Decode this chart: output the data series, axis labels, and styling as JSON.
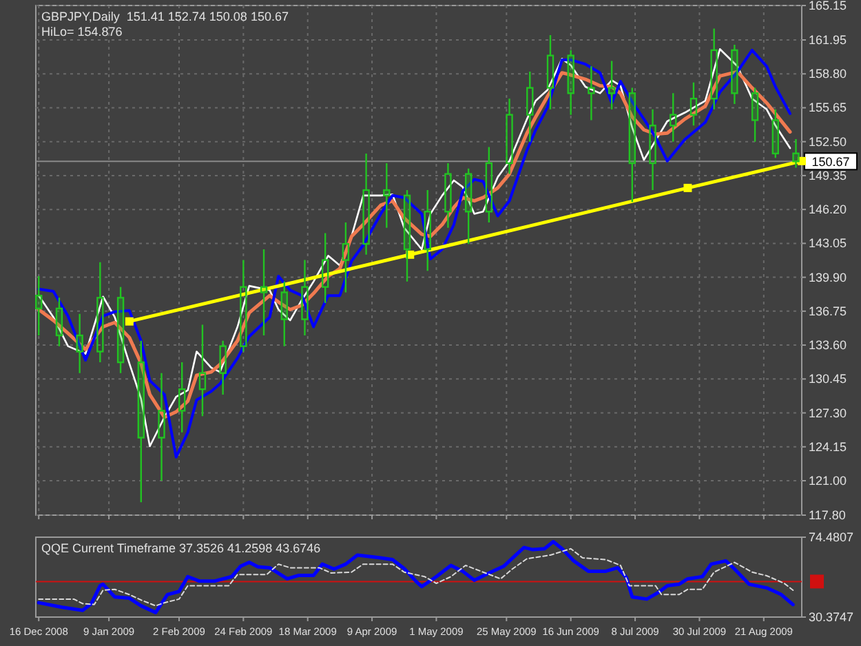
{
  "chart_data": [
    {
      "type": "candlestick",
      "title": "GBPJPY,Daily  151.41 152.74 150.08 150.67",
      "subtitle": "HiLo= 154.876",
      "xlim": [
        "2008-12-15",
        "2009-09-03"
      ],
      "xticks": [
        {
          "value": "2008-12-16",
          "label": null
        },
        {
          "value": "2009-01-09",
          "label": null
        },
        {
          "value": "2009-02-02",
          "label": null
        },
        {
          "value": "2009-02-24",
          "label": null
        },
        {
          "value": "2009-03-18",
          "label": null
        },
        {
          "value": "2009-04-09",
          "label": null
        },
        {
          "value": "2009-05-01",
          "label": null
        },
        {
          "value": "2009-05-25",
          "label": null
        },
        {
          "value": "2009-06-16",
          "label": null
        },
        {
          "value": "2009-07-08",
          "label": null
        },
        {
          "value": "2009-07-30",
          "label": null
        },
        {
          "value": "2009-08-21",
          "label": null
        }
      ],
      "ylim": [
        117.8,
        165.15
      ],
      "yticks": [
        {
          "value": 117.8,
          "label": "117.80"
        },
        {
          "value": 121,
          "label": "121.00"
        },
        124.15,
        {
          "value": 127.3,
          "label": "127.30"
        },
        {
          "value": 130.45,
          "label": "130.45"
        },
        {
          "value": 133.6,
          "label": "133.60"
        },
        136.75,
        {
          "value": 139.9,
          "label": "139.90"
        },
        143.05,
        {
          "value": 146.2,
          "label": "146.20"
        },
        149.35,
        {
          "value": 152.5,
          "label": "152.50"
        },
        155.65,
        {
          "value": 158.8,
          "label": "158.80"
        },
        161.95,
        165.15
      ],
      "tick_labels": "y",
      "grid": true,
      "ref_lines": [
        {
          "axis": "y",
          "value": 150.67,
          "label": "150.67",
          "color": "#8a8a8a"
        }
      ],
      "series": [
        {
          "color": "#22c322",
          "x": [
            "2008-12-16",
            "2008-12-23",
            "2008-12-30",
            "2009-01-06",
            "2009-01-13",
            "2009-01-20",
            "2009-01-27",
            "2009-02-03",
            "2009-02-10",
            "2009-02-17",
            "2009-02-24",
            "2009-03-03",
            "2009-03-10",
            "2009-03-17",
            "2009-03-24",
            "2009-03-31",
            "2009-04-07",
            "2009-04-14",
            "2009-04-21",
            "2009-04-28",
            "2009-05-05",
            "2009-05-12",
            "2009-05-19",
            "2009-05-26",
            "2009-06-02",
            "2009-06-09",
            "2009-06-16",
            "2009-06-23",
            "2009-06-30",
            "2009-07-07",
            "2009-07-14",
            "2009-07-21",
            "2009-07-28",
            "2009-08-04",
            "2009-08-11",
            "2009-08-18",
            "2009-08-25",
            "2009-09-01"
          ],
          "ohlc": [
            [
              138.2,
              140.0,
              134.5,
              137.0
            ],
            [
              137.0,
              138.0,
              133.5,
              134.5
            ],
            [
              134.5,
              136.5,
              131.0,
              133.0
            ],
            [
              133.0,
              141.3,
              132.0,
              138.0
            ],
            [
              138.0,
              139.0,
              131.0,
              132.0
            ],
            [
              132.0,
              134.0,
              119.0,
              125.0
            ],
            [
              125.0,
              131.0,
              121.0,
              127.5
            ],
            [
              127.5,
              132.0,
              125.5,
              129.5
            ],
            [
              129.5,
              135.5,
              127.0,
              131.0
            ],
            [
              131.0,
              134.0,
              129.0,
              133.5
            ],
            [
              133.5,
              141.5,
              133.0,
              139.0
            ],
            [
              139.0,
              142.5,
              134.5,
              138.5
            ],
            [
              138.5,
              139.5,
              133.5,
              136.0
            ],
            [
              136.0,
              141.5,
              134.5,
              139.0
            ],
            [
              139.0,
              144.0,
              137.5,
              141.5
            ],
            [
              141.5,
              145.0,
              138.5,
              143.0
            ],
            [
              143.0,
              151.4,
              142.0,
              148.0
            ],
            [
              148.0,
              150.5,
              144.5,
              147.5
            ],
            [
              147.5,
              148.0,
              139.5,
              142.5
            ],
            [
              142.5,
              148.0,
              140.5,
              146.0
            ],
            [
              146.0,
              150.5,
              144.5,
              149.5
            ],
            [
              149.5,
              150.0,
              143.0,
              146.0
            ],
            [
              146.0,
              152.0,
              145.0,
              150.5
            ],
            [
              150.5,
              156.5,
              149.5,
              155.0
            ],
            [
              155.0,
              159.0,
              152.5,
              157.5
            ],
            [
              157.5,
              162.4,
              155.5,
              160.5
            ],
            [
              160.5,
              161.0,
              155.0,
              157.0
            ],
            [
              157.0,
              159.5,
              154.5,
              157.5
            ],
            [
              157.5,
              160.0,
              155.5,
              157.0
            ],
            [
              157.0,
              157.5,
              146.9,
              150.5
            ],
            [
              150.5,
              155.5,
              148.0,
              154.0
            ],
            [
              154.0,
              157.0,
              152.5,
              155.0
            ],
            [
              155.0,
              158.0,
              154.0,
              156.5
            ],
            [
              156.5,
              163.0,
              155.5,
              161.0
            ],
            [
              161.0,
              161.5,
              156.0,
              157.0
            ],
            [
              157.0,
              157.5,
              152.5,
              154.5
            ],
            [
              154.5,
              155.5,
              151.0,
              151.4
            ],
            [
              151.41,
              152.74,
              150.08,
              150.67
            ]
          ]
        },
        {
          "type": "line",
          "color": "#ffffff",
          "x": [
            "2008-12-16",
            "2008-12-21",
            "2008-12-26",
            "2009-01-01",
            "2009-01-07",
            "2009-01-11",
            "2009-01-16",
            "2009-01-20",
            "2009-01-23",
            "2009-01-28",
            "2009-02-01",
            "2009-02-05",
            "2009-02-08",
            "2009-02-13",
            "2009-02-16",
            "2009-02-22",
            "2009-02-26",
            "2009-03-05",
            "2009-03-08",
            "2009-03-12",
            "2009-03-16",
            "2009-03-20",
            "2009-03-25",
            "2009-03-29",
            "2009-04-02",
            "2009-04-06",
            "2009-04-12",
            "2009-04-16",
            "2009-04-20",
            "2009-04-26",
            "2009-04-29",
            "2009-05-03",
            "2009-05-07",
            "2009-05-10",
            "2009-05-14",
            "2009-05-17",
            "2009-05-22",
            "2009-05-26",
            "2009-06-01",
            "2009-06-04",
            "2009-06-08",
            "2009-06-13",
            "2009-06-16",
            "2009-06-21",
            "2009-06-26",
            "2009-06-30",
            "2009-07-03",
            "2009-07-07",
            "2009-07-11",
            "2009-07-15",
            "2009-07-19",
            "2009-07-25",
            "2009-08-01",
            "2009-08-06",
            "2009-08-12",
            "2009-08-17",
            "2009-08-22",
            "2009-08-25",
            "2009-08-30"
          ],
          "values": [
            138.2,
            136.2,
            133.5,
            132.8,
            138.1,
            136.2,
            131.9,
            128.6,
            124.2,
            126.9,
            128.8,
            129.4,
            133.0,
            131.5,
            131.1,
            135.3,
            139.1,
            138.7,
            136.9,
            135.9,
            137.8,
            139.5,
            141.9,
            141.0,
            143.7,
            147.5,
            147.5,
            147.6,
            144.5,
            142.5,
            145.8,
            147.5,
            148.9,
            148.3,
            145.8,
            146.0,
            149.2,
            150.7,
            154.6,
            156.3,
            157.3,
            160.2,
            159.6,
            157.6,
            157.0,
            158.2,
            157.7,
            153.8,
            150.8,
            152.6,
            154.4,
            155.2,
            156.3,
            161.1,
            159.5,
            156.5,
            155.5,
            154.0,
            151.9
          ]
        },
        {
          "type": "line",
          "color": "#f07a50",
          "x": [
            "2008-12-16",
            "2008-12-21",
            "2008-12-26",
            "2009-01-01",
            "2009-01-07",
            "2009-01-11",
            "2009-01-16",
            "2009-01-20",
            "2009-01-23",
            "2009-01-28",
            "2009-02-01",
            "2009-02-05",
            "2009-02-08",
            "2009-02-13",
            "2009-02-16",
            "2009-02-22",
            "2009-02-26",
            "2009-03-05",
            "2009-03-08",
            "2009-03-12",
            "2009-03-16",
            "2009-03-20",
            "2009-03-25",
            "2009-03-29",
            "2009-04-02",
            "2009-04-06",
            "2009-04-12",
            "2009-04-16",
            "2009-04-20",
            "2009-04-26",
            "2009-04-29",
            "2009-05-03",
            "2009-05-07",
            "2009-05-10",
            "2009-05-14",
            "2009-05-17",
            "2009-05-22",
            "2009-05-26",
            "2009-06-01",
            "2009-06-04",
            "2009-06-08",
            "2009-06-13",
            "2009-06-16",
            "2009-06-21",
            "2009-06-26",
            "2009-06-30",
            "2009-07-03",
            "2009-07-07",
            "2009-07-11",
            "2009-07-15",
            "2009-07-19",
            "2009-07-25",
            "2009-08-01",
            "2009-08-06",
            "2009-08-12",
            "2009-08-17",
            "2009-08-22",
            "2009-08-25",
            "2009-08-30"
          ],
          "values": [
            136.9,
            135.9,
            134.7,
            133.2,
            135.3,
            135.7,
            134.3,
            131.9,
            129.0,
            126.9,
            127.4,
            128.4,
            130.8,
            131.1,
            131.8,
            134.0,
            136.6,
            138.2,
            137.6,
            136.9,
            137.3,
            138.4,
            140.0,
            140.7,
            143.7,
            144.8,
            146.6,
            147.0,
            145.4,
            143.9,
            143.7,
            144.8,
            146.4,
            147.3,
            147.0,
            147.3,
            148.2,
            149.5,
            153.3,
            154.8,
            156.7,
            158.9,
            158.7,
            158.3,
            157.7,
            157.6,
            157.0,
            154.8,
            153.6,
            153.2,
            153.3,
            154.6,
            155.8,
            158.6,
            159.0,
            157.5,
            156.1,
            155.1,
            153.4
          ]
        },
        {
          "type": "line",
          "color": "#0000ff",
          "x": [
            "2008-12-16",
            "2008-12-21",
            "2008-12-26",
            "2009-01-01",
            "2009-01-07",
            "2009-01-11",
            "2009-01-16",
            "2009-01-20",
            "2009-01-23",
            "2009-01-28",
            "2009-02-01",
            "2009-02-05",
            "2009-02-08",
            "2009-02-13",
            "2009-02-16",
            "2009-02-22",
            "2009-02-26",
            "2009-03-05",
            "2009-03-08",
            "2009-03-12",
            "2009-03-16",
            "2009-03-20",
            "2009-03-25",
            "2009-03-29",
            "2009-04-02",
            "2009-04-06",
            "2009-04-12",
            "2009-04-16",
            "2009-04-20",
            "2009-04-26",
            "2009-04-29",
            "2009-05-03",
            "2009-05-07",
            "2009-05-10",
            "2009-05-14",
            "2009-05-17",
            "2009-05-22",
            "2009-05-26",
            "2009-06-01",
            "2009-06-04",
            "2009-06-08",
            "2009-06-13",
            "2009-06-16",
            "2009-06-21",
            "2009-06-26",
            "2009-06-30",
            "2009-07-03",
            "2009-07-07",
            "2009-07-11",
            "2009-07-15",
            "2009-07-19",
            "2009-07-25",
            "2009-08-01",
            "2009-08-06",
            "2009-08-12",
            "2009-08-17",
            "2009-08-22",
            "2009-08-25",
            "2009-08-30"
          ],
          "values": [
            138.8,
            138.6,
            136.3,
            132.2,
            136.3,
            136.7,
            136.8,
            134.0,
            130.3,
            129.0,
            123.2,
            125.5,
            128.5,
            129.3,
            130.0,
            132.4,
            134.4,
            136.2,
            140.0,
            138.7,
            138.2,
            135.3,
            138.2,
            138.2,
            141.4,
            142.9,
            145.8,
            147.5,
            147.3,
            145.8,
            141.6,
            142.5,
            144.8,
            147.9,
            149.0,
            148.8,
            145.6,
            147.0,
            151.7,
            153.6,
            155.7,
            160.1,
            160.1,
            159.7,
            158.9,
            156.1,
            158.1,
            156.2,
            154.6,
            152.9,
            150.7,
            152.7,
            154.3,
            157.1,
            159.0,
            161.0,
            159.5,
            157.6,
            155.1
          ]
        },
        {
          "type": "line",
          "color": "#ffff00",
          "marker": "square",
          "x": [
            "2009-01-16",
            "2009-04-22",
            "2009-07-26",
            "2009-09-03"
          ],
          "values": [
            135.8,
            142.0,
            148.2,
            150.7
          ]
        }
      ]
    },
    {
      "type": "line",
      "title": "QQE Current Timeframe 37.3526 41.2598 43.6746",
      "xlim": [
        "2008-12-15",
        "2009-09-03"
      ],
      "xticks": [
        {
          "value": "2008-12-16",
          "label": "16 Dec 2008"
        },
        {
          "value": "2009-01-09",
          "label": "9 Jan 2009"
        },
        {
          "value": "2009-02-02",
          "label": "2 Feb 2009"
        },
        {
          "value": "2009-02-24",
          "label": "24 Feb 2009"
        },
        {
          "value": "2009-03-18",
          "label": "18 Mar 2009"
        },
        {
          "value": "2009-04-09",
          "label": "9 Apr 2009"
        },
        {
          "value": "2009-05-01",
          "label": "1 May 2009"
        },
        {
          "value": "2009-05-25",
          "label": "25 May 2009"
        },
        {
          "value": "2009-06-16",
          "label": "16 Jun 2009"
        },
        {
          "value": "2009-07-08",
          "label": "8 Jul 2009"
        },
        {
          "value": "2009-07-30",
          "label": "30 Jul 2009"
        },
        {
          "value": "2009-08-21",
          "label": "21 Aug 2009"
        }
      ],
      "ylim": [
        30.3747,
        74.4807
      ],
      "yticks": [
        30.3747,
        74.4807
      ],
      "grid": false,
      "ref_lines": [
        {
          "axis": "y",
          "value": 50,
          "label": null,
          "color": "#d01010"
        }
      ],
      "series": [
        {
          "color": "#0000ff",
          "x": [
            "2008-12-16",
            "2008-12-24",
            "2008-12-31",
            "2009-01-03",
            "2009-01-06",
            "2009-01-07",
            "2009-01-11",
            "2009-01-16",
            "2009-01-20",
            "2009-01-25",
            "2009-01-29",
            "2009-02-02",
            "2009-02-05",
            "2009-02-09",
            "2009-02-14",
            "2009-02-20",
            "2009-02-23",
            "2009-02-26",
            "2009-03-01",
            "2009-03-05",
            "2009-03-11",
            "2009-03-15",
            "2009-03-20",
            "2009-03-23",
            "2009-03-27",
            "2009-03-31",
            "2009-04-04",
            "2009-04-11",
            "2009-04-16",
            "2009-04-20",
            "2009-04-24",
            "2009-04-26",
            "2009-05-01",
            "2009-05-06",
            "2009-05-10",
            "2009-05-14",
            "2009-05-19",
            "2009-05-24",
            "2009-05-31",
            "2009-06-03",
            "2009-06-07",
            "2009-06-10",
            "2009-06-13",
            "2009-06-17",
            "2009-06-22",
            "2009-06-28",
            "2009-07-02",
            "2009-07-05",
            "2009-07-07",
            "2009-07-12",
            "2009-07-16",
            "2009-07-19",
            "2009-07-23",
            "2009-07-26",
            "2009-07-31",
            "2009-08-03",
            "2009-08-08",
            "2009-08-11",
            "2009-08-16",
            "2009-08-22",
            "2009-08-27",
            "2009-08-31"
          ],
          "values": [
            38.3,
            35.8,
            34.1,
            37.8,
            47.7,
            48.5,
            41.5,
            40.8,
            36.6,
            32.9,
            42.8,
            44.5,
            52.7,
            50.2,
            50.2,
            52.7,
            58.4,
            60.6,
            58.1,
            57.6,
            51.5,
            53.4,
            53.4,
            59.6,
            56.9,
            59.6,
            64.6,
            63.3,
            62.1,
            57.2,
            50.2,
            47.2,
            52.7,
            58.9,
            55.7,
            50.7,
            54.7,
            58.4,
            68.8,
            67.6,
            68.1,
            72.0,
            68.1,
            61.4,
            55.7,
            55.7,
            57.6,
            52.2,
            41.5,
            40.3,
            44.0,
            47.7,
            48.5,
            51.5,
            52.7,
            59.6,
            61.4,
            56.9,
            48.5,
            46.5,
            42.8,
            37.3
          ]
        },
        {
          "color": "#d8d8d8",
          "line_style": "dashed",
          "x": [
            "2008-12-16",
            "2008-12-28",
            "2008-12-31",
            "2009-01-04",
            "2009-01-07",
            "2009-01-11",
            "2009-01-16",
            "2009-01-20",
            "2009-01-25",
            "2009-01-28",
            "2009-02-02",
            "2009-02-05",
            "2009-02-13",
            "2009-02-19",
            "2009-02-22",
            "2009-03-04",
            "2009-03-08",
            "2009-03-12",
            "2009-03-22",
            "2009-03-26",
            "2009-04-02",
            "2009-04-06",
            "2009-04-16",
            "2009-04-20",
            "2009-04-27",
            "2009-05-01",
            "2009-05-06",
            "2009-05-11",
            "2009-05-17",
            "2009-05-23",
            "2009-05-27",
            "2009-06-01",
            "2009-06-09",
            "2009-06-16",
            "2009-06-20",
            "2009-06-28",
            "2009-07-03",
            "2009-07-06",
            "2009-07-15",
            "2009-07-17",
            "2009-07-23",
            "2009-07-26",
            "2009-07-31",
            "2009-08-04",
            "2009-08-11",
            "2009-08-17",
            "2009-08-22",
            "2009-08-28",
            "2009-08-31"
          ],
          "values": [
            40.3,
            40.3,
            37.8,
            37.3,
            45.2,
            45.7,
            42.8,
            39.8,
            36.6,
            38.3,
            40.3,
            47.7,
            47.7,
            47.7,
            53.9,
            53.9,
            59.6,
            57.6,
            57.6,
            54.7,
            55.2,
            59.6,
            59.6,
            55.2,
            52.7,
            49.0,
            52.7,
            58.9,
            55.2,
            51.5,
            56.9,
            62.6,
            64.6,
            68.1,
            63.1,
            62.1,
            58.9,
            47.7,
            47.7,
            42.8,
            42.8,
            45.7,
            45.7,
            55.2,
            60.6,
            55.2,
            53.2,
            49.0,
            45.2
          ]
        }
      ]
    }
  ]
}
